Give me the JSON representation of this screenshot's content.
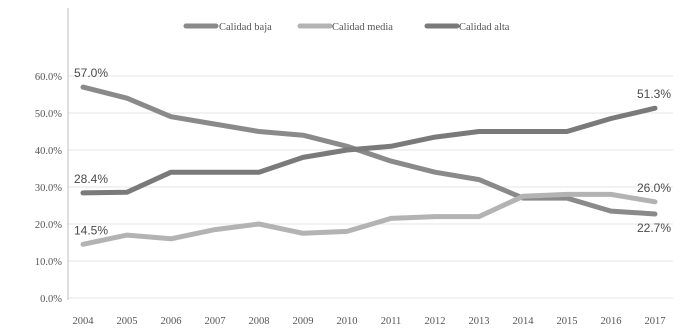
{
  "chart_data": {
    "type": "line",
    "x": [
      "2004",
      "2005",
      "2006",
      "2007",
      "2008",
      "2009",
      "2010",
      "2011",
      "2012",
      "2013",
      "2014",
      "2015",
      "2016",
      "2017"
    ],
    "ylim": [
      0,
      60
    ],
    "yticks": [
      "0.0%",
      "10.0%",
      "20.0%",
      "30.0%",
      "40.0%",
      "50.0%",
      "60.0%"
    ],
    "grid": true,
    "legend_position": "top",
    "series": [
      {
        "name": "Calidad baja",
        "color": "#8a8a8a",
        "values": [
          57.0,
          54.0,
          49.0,
          47.0,
          45.0,
          44.0,
          41.0,
          37.0,
          34.0,
          32.0,
          27.0,
          27.0,
          23.5,
          22.7
        ]
      },
      {
        "name": "Calidad media",
        "color": "#b3b3b3",
        "values": [
          14.5,
          17.0,
          16.0,
          18.5,
          20.0,
          17.5,
          18.0,
          21.5,
          22.0,
          22.0,
          27.5,
          28.0,
          28.0,
          26.0
        ]
      },
      {
        "name": "Calidad alta",
        "color": "#7a7a7a",
        "values": [
          28.4,
          28.6,
          34.0,
          34.0,
          34.0,
          38.0,
          40.0,
          41.0,
          43.5,
          45.0,
          45.0,
          45.0,
          48.5,
          51.3
        ]
      }
    ],
    "data_labels": [
      {
        "text": "57.0%",
        "series": 0,
        "index": 0,
        "pos": "above"
      },
      {
        "text": "28.4%",
        "series": 2,
        "index": 0,
        "pos": "above"
      },
      {
        "text": "14.5%",
        "series": 1,
        "index": 0,
        "pos": "above"
      },
      {
        "text": "51.3%",
        "series": 2,
        "index": 13,
        "pos": "above"
      },
      {
        "text": "26.0%",
        "series": 1,
        "index": 13,
        "pos": "above"
      },
      {
        "text": "22.7%",
        "series": 0,
        "index": 13,
        "pos": "below"
      }
    ]
  }
}
